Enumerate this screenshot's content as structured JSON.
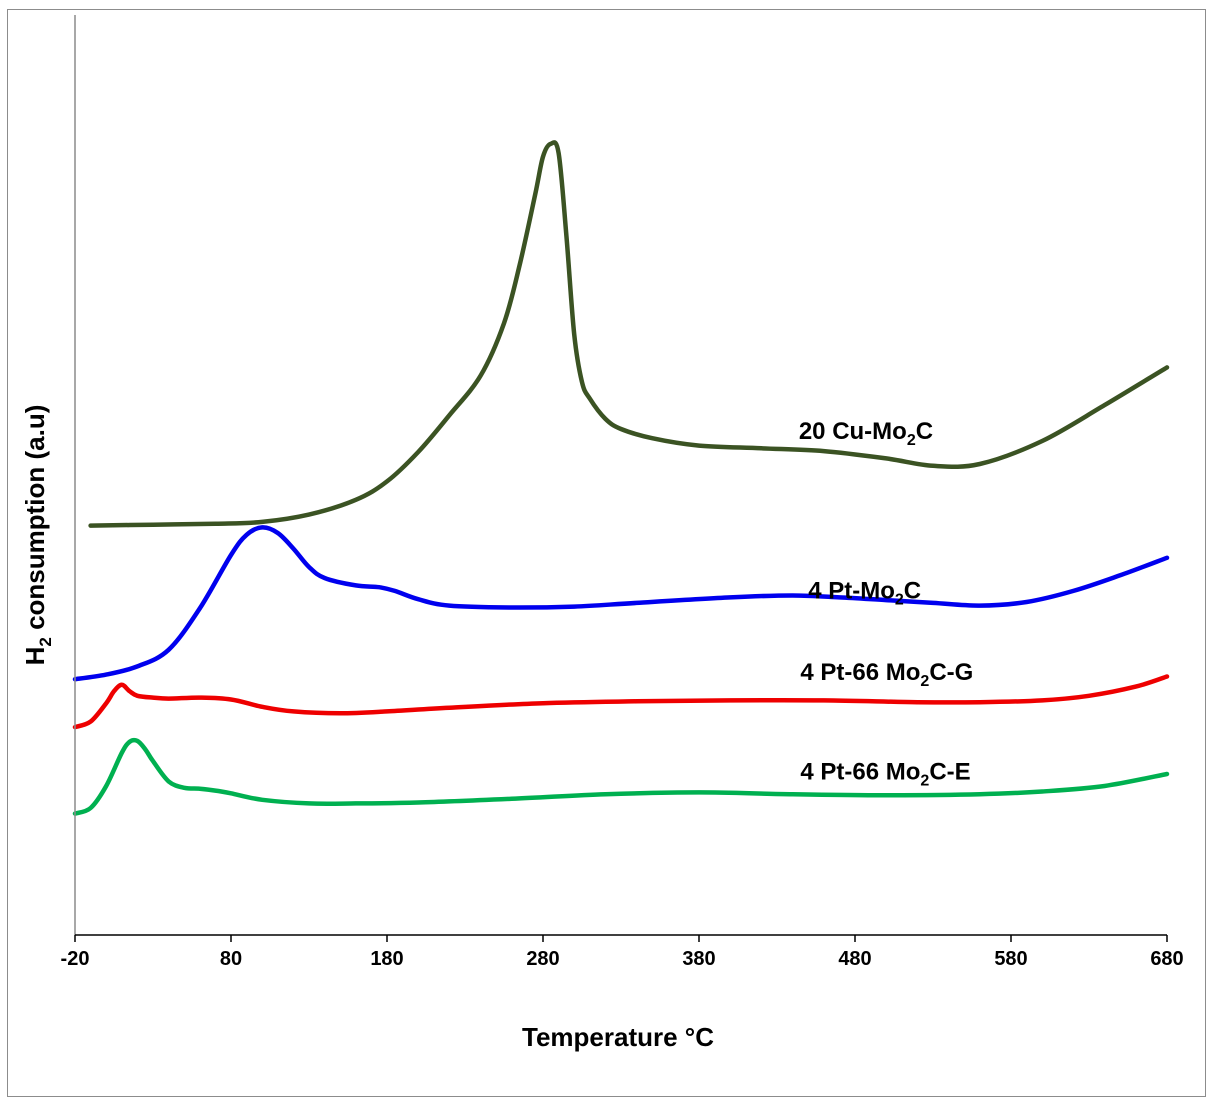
{
  "chart_data": {
    "type": "line",
    "xlabel": "Temperature °C",
    "ylabel": {
      "prefix": "H",
      "sub": "2",
      "rest": " consumption  (a.u)"
    },
    "xlim": [
      -20,
      680
    ],
    "ylim": [
      0,
      1
    ],
    "y_ticks_labeled": false,
    "grid": false,
    "legend": "inline labels",
    "x_ticks": [
      -20,
      80,
      180,
      280,
      380,
      480,
      580,
      680
    ],
    "x_tick_labels": [
      "-20",
      "80",
      "180",
      "280",
      "380",
      "480",
      "580",
      "680"
    ],
    "series": [
      {
        "name": "20 Cu-Mo2C",
        "label_parts": [
          "20 Cu-Mo",
          "2",
          "C"
        ],
        "color": "#3b5323",
        "label_at": [
          444,
          0.539
        ],
        "x": [
          -10,
          30,
          70,
          100,
          130,
          160,
          180,
          200,
          220,
          240,
          255,
          265,
          275,
          280,
          285,
          290,
          295,
          300,
          305,
          310,
          320,
          330,
          350,
          380,
          420,
          460,
          500,
          530,
          560,
          600,
          640,
          680
        ],
        "y": [
          0.445,
          0.446,
          0.447,
          0.449,
          0.457,
          0.473,
          0.493,
          0.525,
          0.565,
          0.608,
          0.665,
          0.728,
          0.805,
          0.846,
          0.86,
          0.85,
          0.76,
          0.653,
          0.601,
          0.583,
          0.561,
          0.55,
          0.54,
          0.532,
          0.529,
          0.526,
          0.518,
          0.51,
          0.512,
          0.537,
          0.576,
          0.617
        ]
      },
      {
        "name": "4 Pt-Mo2C",
        "label_parts": [
          "4 Pt-Mo",
          "2",
          "C"
        ],
        "color": "#0000ee",
        "label_at": [
          450,
          0.366
        ],
        "x": [
          -20,
          0,
          20,
          40,
          60,
          80,
          90,
          100,
          110,
          120,
          130,
          140,
          160,
          175,
          185,
          200,
          220,
          260,
          300,
          340,
          400,
          440,
          470,
          500,
          530,
          560,
          590,
          620,
          650,
          680
        ],
        "y": [
          0.278,
          0.283,
          0.292,
          0.31,
          0.355,
          0.413,
          0.435,
          0.443,
          0.437,
          0.42,
          0.4,
          0.388,
          0.38,
          0.378,
          0.374,
          0.365,
          0.358,
          0.356,
          0.357,
          0.361,
          0.367,
          0.369,
          0.367,
          0.364,
          0.361,
          0.358,
          0.362,
          0.374,
          0.391,
          0.41
        ]
      },
      {
        "name": "4 Pt-66 Mo2C-G",
        "label_parts": [
          "4 Pt-66 Mo",
          "2",
          "C-G"
        ],
        "color": "#ee0000",
        "label_at": [
          445,
          0.277
        ],
        "x": [
          -20,
          -10,
          0,
          5,
          10,
          15,
          20,
          30,
          40,
          60,
          80,
          100,
          120,
          150,
          180,
          220,
          280,
          340,
          400,
          460,
          520,
          560,
          600,
          630,
          660,
          680
        ],
        "y": [
          0.226,
          0.232,
          0.252,
          0.265,
          0.272,
          0.265,
          0.26,
          0.258,
          0.257,
          0.258,
          0.256,
          0.248,
          0.243,
          0.241,
          0.243,
          0.247,
          0.252,
          0.254,
          0.255,
          0.255,
          0.253,
          0.253,
          0.255,
          0.26,
          0.27,
          0.281
        ]
      },
      {
        "name": "4 Pt-66 Mo2C-E",
        "label_parts": [
          "4 Pt-66 Mo",
          "2",
          "C-E"
        ],
        "color": "#00b050",
        "label_at": [
          445,
          0.169
        ],
        "x": [
          -20,
          -10,
          0,
          10,
          15,
          20,
          25,
          30,
          40,
          50,
          60,
          70,
          80,
          100,
          130,
          160,
          200,
          260,
          320,
          380,
          440,
          500,
          560,
          600,
          640,
          680
        ],
        "y": [
          0.132,
          0.138,
          0.162,
          0.198,
          0.21,
          0.211,
          0.202,
          0.189,
          0.167,
          0.16,
          0.159,
          0.157,
          0.154,
          0.147,
          0.143,
          0.143,
          0.144,
          0.148,
          0.153,
          0.155,
          0.153,
          0.152,
          0.153,
          0.156,
          0.162,
          0.175
        ]
      }
    ]
  }
}
